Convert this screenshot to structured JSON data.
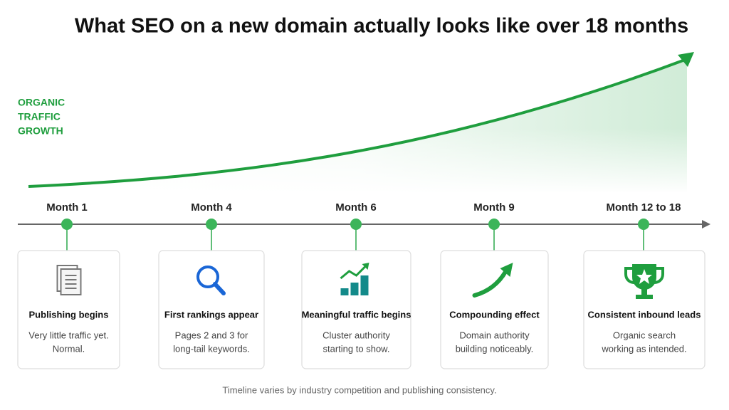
{
  "header": {
    "title": "What SEO on a new domain actually looks like over 18 months"
  },
  "axis_label": {
    "lines": [
      "ORGANIC",
      "TRAFFIC",
      "GROWTH"
    ]
  },
  "milestones": [
    {
      "label": "Month 1",
      "title": "Publishing begins",
      "description": [
        "Very little traffic yet.",
        "Normal."
      ]
    },
    {
      "label": "Month 4",
      "title": "First rankings appear",
      "description": [
        "Pages 2 and 3 for",
        "long-tail keywords."
      ]
    },
    {
      "label": "Month 6",
      "title": "Meaningful traffic begins",
      "description": [
        "Cluster authority",
        "starting to show."
      ]
    },
    {
      "label": "Month 9",
      "title": "Compounding effect",
      "description": [
        "Domain authority",
        "building noticeably."
      ]
    },
    {
      "label": "Month 12 to 18",
      "title": "Consistent inbound leads",
      "description": [
        "Organic search",
        "working as intended."
      ]
    }
  ],
  "footnote": "Timeline varies by industry competition and publishing consistency."
}
